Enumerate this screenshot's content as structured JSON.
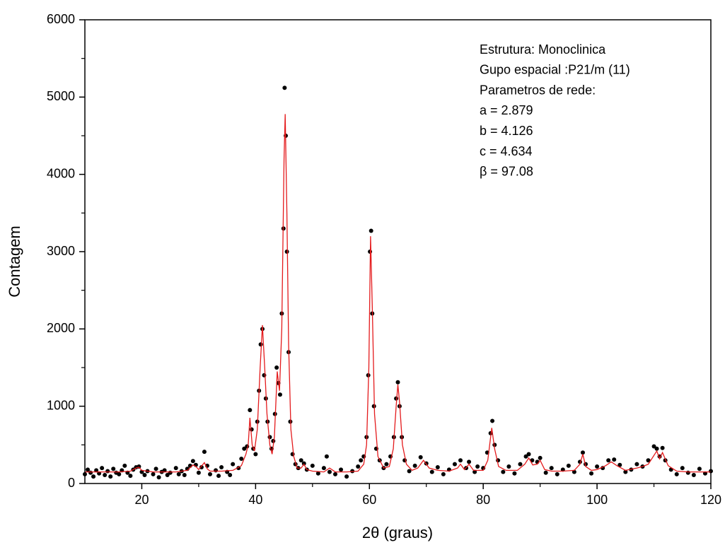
{
  "chart_data": {
    "type": "scatter",
    "x_label": "2θ (graus)",
    "y_label": "Contagem",
    "annotations": [
      "Estrutura: Monoclinica",
      "Gupo espacial :P21/m (11)",
      "Parametros de rede:",
      "a = 2.879",
      "b = 4.126",
      "c = 4.634",
      "β = 97.08"
    ],
    "xlim": [
      10,
      120
    ],
    "ylim": [
      0,
      6000
    ],
    "xticks": [
      20,
      40,
      60,
      80,
      100,
      120
    ],
    "yticks": [
      0,
      1000,
      2000,
      3000,
      4000,
      5000,
      6000
    ],
    "x_minor_ticks": [
      30,
      50,
      70,
      90,
      110
    ],
    "y_minor_ticks": [
      500,
      1500,
      2500,
      3500,
      4500,
      5500
    ],
    "grid": false,
    "series": [
      {
        "style": "markers",
        "color": "#000000",
        "x": [
          10,
          10.5,
          11,
          11.5,
          12,
          12.5,
          13,
          13.5,
          14,
          14.5,
          15,
          15.5,
          16,
          16.5,
          17,
          17.5,
          18,
          18.5,
          19,
          19.5,
          20,
          20.5,
          21,
          22,
          22.5,
          23,
          23.5,
          24,
          24.5,
          25,
          26,
          26.5,
          27,
          27.5,
          28,
          28.5,
          29,
          29.5,
          30,
          30.5,
          31,
          31.5,
          32,
          33,
          33.5,
          34,
          35,
          35.5,
          36,
          37,
          37.5,
          38,
          38.5,
          39,
          39.3,
          39.6,
          40,
          40.3,
          40.6,
          40.9,
          41.2,
          41.5,
          41.8,
          42.1,
          42.5,
          42.8,
          43.1,
          43.4,
          43.7,
          44,
          44.3,
          44.6,
          44.9,
          45.1,
          45.3,
          45.5,
          45.8,
          46.1,
          46.5,
          47,
          47.5,
          48,
          48.5,
          49,
          50,
          51,
          52,
          52.5,
          53,
          54,
          55,
          56,
          57,
          58,
          58.5,
          59,
          59.5,
          59.8,
          60.1,
          60.3,
          60.5,
          60.8,
          61.2,
          61.8,
          62.5,
          63,
          63.7,
          64.3,
          64.7,
          65,
          65.3,
          65.7,
          66.2,
          67,
          68,
          69,
          70,
          71,
          72,
          73,
          74,
          75,
          76,
          77,
          77.5,
          78.5,
          79,
          80,
          80.7,
          81.3,
          81.6,
          82,
          82.6,
          83.5,
          84.5,
          85.5,
          86.5,
          87.5,
          88,
          88.6,
          89.5,
          90,
          91,
          92,
          93,
          94,
          95,
          96,
          97,
          97.5,
          98,
          99,
          100,
          101,
          102,
          103,
          104,
          105,
          106,
          107,
          108,
          109,
          110,
          110.5,
          111,
          111.5,
          112,
          113,
          114,
          115,
          116,
          117,
          118,
          119,
          120
        ],
        "values": [
          120,
          180,
          140,
          90,
          170,
          130,
          200,
          110,
          160,
          90,
          190,
          140,
          120,
          170,
          230,
          140,
          100,
          180,
          210,
          220,
          150,
          110,
          160,
          120,
          190,
          80,
          150,
          170,
          110,
          140,
          200,
          120,
          160,
          110,
          190,
          230,
          290,
          240,
          140,
          210,
          410,
          230,
          120,
          170,
          100,
          210,
          150,
          110,
          250,
          200,
          320,
          450,
          480,
          950,
          700,
          450,
          380,
          800,
          1200,
          1800,
          2000,
          1400,
          1100,
          800,
          600,
          450,
          550,
          900,
          1500,
          1300,
          1150,
          2200,
          3300,
          5120,
          4500,
          3000,
          1700,
          800,
          380,
          250,
          200,
          300,
          260,
          180,
          230,
          130,
          200,
          350,
          150,
          120,
          180,
          90,
          160,
          220,
          300,
          350,
          600,
          1400,
          3000,
          3270,
          2200,
          1000,
          450,
          300,
          200,
          250,
          350,
          600,
          1100,
          1310,
          1000,
          600,
          300,
          160,
          230,
          340,
          260,
          150,
          210,
          120,
          180,
          250,
          300,
          200,
          280,
          150,
          220,
          200,
          400,
          650,
          810,
          500,
          300,
          150,
          220,
          130,
          250,
          350,
          380,
          300,
          280,
          330,
          140,
          200,
          120,
          180,
          230,
          150,
          280,
          400,
          250,
          130,
          220,
          200,
          300,
          310,
          240,
          150,
          180,
          250,
          220,
          300,
          480,
          450,
          350,
          460,
          300,
          180,
          120,
          200,
          140,
          110,
          190,
          130,
          160
        ]
      },
      {
        "style": "line",
        "color": "#e41a1c",
        "x": [
          10,
          12,
          14,
          16,
          18,
          19,
          19.5,
          20,
          22,
          24,
          26,
          28,
          29,
          29.5,
          30,
          31,
          31.5,
          32,
          34,
          36,
          37.5,
          38.3,
          38.7,
          39,
          39.4,
          39.8,
          40.3,
          40.8,
          41.2,
          41.6,
          42,
          42.5,
          42.9,
          43.3,
          43.8,
          44.2,
          44.6,
          45,
          45.2,
          45.5,
          45.8,
          46.2,
          46.7,
          47.3,
          48,
          48.5,
          49,
          50,
          52,
          53,
          54,
          56,
          58,
          59,
          59.5,
          59.9,
          60.2,
          60.5,
          60.9,
          61.5,
          62.5,
          63.5,
          64.2,
          64.7,
          65,
          65.3,
          65.8,
          66.5,
          67.5,
          68.5,
          69.5,
          70.5,
          72,
          74,
          75.5,
          76,
          76.7,
          77.5,
          78.3,
          80,
          80.8,
          81.5,
          82,
          82.7,
          84,
          86,
          87.3,
          88,
          88.7,
          89.5,
          90,
          90.8,
          92,
          94,
          96,
          97,
          97.5,
          98,
          99,
          100,
          101.5,
          102.5,
          103.5,
          105,
          107,
          108,
          109,
          110.5,
          111,
          111.5,
          112.5,
          114,
          116,
          118,
          120
        ],
        "values": [
          150,
          150,
          150,
          150,
          160,
          200,
          210,
          170,
          150,
          150,
          150,
          170,
          240,
          220,
          180,
          270,
          190,
          160,
          160,
          170,
          230,
          380,
          500,
          850,
          500,
          420,
          700,
          1500,
          2050,
          1500,
          900,
          500,
          380,
          600,
          1450,
          1200,
          2000,
          4200,
          4780,
          3500,
          1800,
          700,
          350,
          200,
          200,
          250,
          180,
          160,
          150,
          200,
          150,
          150,
          160,
          250,
          500,
          1500,
          3200,
          2300,
          900,
          350,
          200,
          220,
          450,
          1000,
          1280,
          1050,
          500,
          250,
          170,
          200,
          300,
          200,
          170,
          160,
          200,
          250,
          180,
          250,
          170,
          170,
          300,
          720,
          450,
          220,
          170,
          170,
          250,
          330,
          240,
          250,
          300,
          180,
          160,
          160,
          170,
          250,
          380,
          220,
          170,
          180,
          230,
          280,
          230,
          170,
          200,
          220,
          250,
          420,
          320,
          400,
          230,
          160,
          150,
          150,
          150
        ]
      }
    ]
  }
}
